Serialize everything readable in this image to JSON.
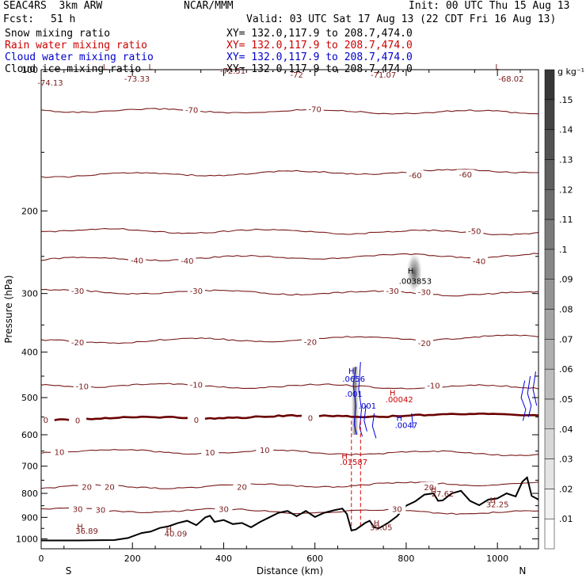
{
  "header": {
    "model": "SEAC4RS  3km ARW",
    "org": "NCAR/MMM",
    "init": "Init: 00 UTC Thu 15 Aug 13",
    "fcst_label": "Fcst:",
    "fcst_value": "51 h",
    "valid": "Valid: 03 UTC Sat 17 Aug 13 (22 CDT Fri 16 Aug 13)"
  },
  "fields": [
    {
      "name": "Snow mixing ratio",
      "xy": "XY= 132.0,117.9 to 208.7,474.0",
      "color": "#000000"
    },
    {
      "name": "Rain water mixing ratio",
      "xy": "XY= 132.0,117.9 to 208.7,474.0",
      "color": "#cc0000"
    },
    {
      "name": "Cloud water mixing ratio",
      "xy": "XY= 132.0,117.9 to 208.7,474.0",
      "color": "#0000cc"
    },
    {
      "name": "Cloud ice mixing ratio",
      "xy": "XY= 132.0,117.9 to 208.7,474.0",
      "color": "#000000"
    }
  ],
  "chart_data": {
    "type": "contour",
    "xlabel": "Distance (km)",
    "ylabel": "Pressure (hPa)",
    "xlim": [
      0,
      1090
    ],
    "ylim": [
      1050,
      100
    ],
    "y_scale": "log",
    "x_ticks": [
      "0",
      "200",
      "400",
      "600",
      "800",
      "1000"
    ],
    "y_ticks": [
      "100",
      "200",
      "300",
      "400",
      "500",
      "600",
      "700",
      "800",
      "900",
      "1000"
    ],
    "x_end_labels": {
      "left": "S",
      "right": "N"
    },
    "colorbar": {
      "unit": "g kg⁻¹",
      "levels": [
        ".01",
        ".02",
        ".03",
        ".04",
        ".05",
        ".06",
        ".07",
        ".08",
        ".09",
        ".1",
        ".11",
        ".12",
        ".13",
        ".14",
        ".15"
      ]
    },
    "colors": {
      "temperature": "#7a1a1a",
      "freezing": "#6b0000",
      "rain": "#dd0000",
      "cloud_water": "#0000dd",
      "terrain": "#000000"
    },
    "temperature_lines": [
      {
        "label": "-70",
        "p": 122,
        "labels_x": [
          330,
          600
        ]
      },
      {
        "label": "-60",
        "p": 168,
        "labels_x": [
          820,
          930
        ]
      },
      {
        "label": "-50",
        "p": 220,
        "labels_x": [
          950
        ]
      },
      {
        "label": "-40",
        "p": 254,
        "labels_x": [
          210,
          320,
          960
        ]
      },
      {
        "label": "-30",
        "p": 297,
        "labels_x": [
          80,
          340,
          770,
          840
        ]
      },
      {
        "label": "-20",
        "p": 380,
        "labels_x": [
          80,
          590,
          840
        ]
      },
      {
        "label": "-10",
        "p": 470,
        "labels_x": [
          90,
          340,
          860
        ]
      },
      {
        "label": "0",
        "p": 555,
        "labels_x": [
          10,
          80,
          340,
          590
        ],
        "freezing": true
      },
      {
        "label": "10",
        "p": 650,
        "labels_x": [
          40,
          370,
          490
        ]
      },
      {
        "label": "20",
        "p": 778,
        "labels_x": [
          100,
          150,
          440,
          850
        ]
      },
      {
        "label": "30",
        "p": 868,
        "labels_x": [
          80,
          130,
          400,
          780
        ]
      }
    ],
    "annotations": [
      {
        "label": "-74.13",
        "x": 20,
        "p": 108,
        "color": "#7a1a1a"
      },
      {
        "label": "L",
        "x": 140,
        "p": 100,
        "color": "#7a1a1a"
      },
      {
        "label": "L",
        "x": 240,
        "p": 100,
        "color": "#7a1a1a"
      },
      {
        "label": "-73.33",
        "x": 210,
        "p": 106,
        "color": "#7a1a1a"
      },
      {
        "label": "-72.51",
        "x": 420,
        "p": 102,
        "color": "#7a1a1a"
      },
      {
        "label": "-72",
        "x": 560,
        "p": 104,
        "color": "#7a1a1a"
      },
      {
        "label": "-71.07",
        "x": 750,
        "p": 104,
        "color": "#7a1a1a"
      },
      {
        "label": "L",
        "x": 1000,
        "p": 100,
        "color": "#7a1a1a"
      },
      {
        "label": "-68.02",
        "x": 1030,
        "p": 106,
        "color": "#7a1a1a"
      },
      {
        "label": "H",
        "x": 810,
        "p": 272,
        "color": "#000000"
      },
      {
        "label": ".003853",
        "x": 820,
        "p": 286,
        "color": "#000000"
      },
      {
        "label": "H",
        "x": 680,
        "p": 445,
        "color": "#0000cc"
      },
      {
        "label": ".0656",
        "x": 685,
        "p": 462,
        "color": "#0000cc"
      },
      {
        "label": ".001",
        "x": 685,
        "p": 498,
        "color": "#0000cc"
      },
      {
        "label": ".001",
        "x": 715,
        "p": 528,
        "color": "#0000cc"
      },
      {
        "label": "H",
        "x": 785,
        "p": 560,
        "color": "#0000cc"
      },
      {
        "label": ".0047",
        "x": 800,
        "p": 580,
        "color": "#0000cc"
      },
      {
        "label": "H",
        "x": 770,
        "p": 495,
        "color": "#cc0000"
      },
      {
        "label": ".00042",
        "x": 785,
        "p": 512,
        "color": "#cc0000"
      },
      {
        "label": "H",
        "x": 665,
        "p": 676,
        "color": "#cc0000"
      },
      {
        "label": ".01587",
        "x": 685,
        "p": 696,
        "color": "#cc0000"
      },
      {
        "label": "H",
        "x": 860,
        "p": 795,
        "color": "#7a1a1a"
      },
      {
        "label": "27.62",
        "x": 880,
        "p": 812,
        "color": "#7a1a1a"
      },
      {
        "label": "H",
        "x": 990,
        "p": 838,
        "color": "#7a1a1a"
      },
      {
        "label": "32.25",
        "x": 1000,
        "p": 856,
        "color": "#7a1a1a"
      },
      {
        "label": "H",
        "x": 85,
        "p": 955,
        "color": "#7a1a1a"
      },
      {
        "label": "36.89",
        "x": 100,
        "p": 976,
        "color": "#7a1a1a"
      },
      {
        "label": "H",
        "x": 280,
        "p": 968,
        "color": "#7a1a1a"
      },
      {
        "label": "40.09",
        "x": 295,
        "p": 988,
        "color": "#7a1a1a"
      },
      {
        "label": "H",
        "x": 735,
        "p": 938,
        "color": "#7a1a1a"
      },
      {
        "label": "39.05",
        "x": 745,
        "p": 958,
        "color": "#7a1a1a"
      }
    ],
    "terrain": {
      "x": [
        0,
        80,
        160,
        190,
        220,
        240,
        260,
        280,
        300,
        320,
        340,
        360,
        370,
        380,
        400,
        420,
        440,
        460,
        480,
        500,
        520,
        540,
        560,
        580,
        600,
        620,
        640,
        660,
        670,
        680,
        690,
        700,
        710,
        720,
        730,
        740,
        760,
        780,
        800,
        820,
        840,
        860,
        870,
        880,
        900,
        920,
        940,
        960,
        980,
        1000,
        1020,
        1040,
        1055,
        1065,
        1075,
        1090
      ],
      "p": [
        1008,
        1008,
        1006,
        996,
        972,
        965,
        948,
        940,
        925,
        915,
        935,
        900,
        893,
        920,
        912,
        930,
        925,
        945,
        920,
        900,
        880,
        872,
        895,
        872,
        898,
        880,
        870,
        862,
        885,
        960,
        955,
        940,
        925,
        915,
        945,
        950,
        925,
        895,
        850,
        832,
        805,
        800,
        830,
        828,
        800,
        790,
        830,
        848,
        825,
        820,
        800,
        812,
        755,
        740,
        810,
        825
      ]
    },
    "rain_column": {
      "x": [
        680,
        700
      ],
      "p_top": 560,
      "p_bottom": 950
    },
    "snow_shading": {
      "x": 818,
      "p_min": 245,
      "p_max": 300,
      "max_value": 0.003853
    },
    "cloud_water_column": {
      "x": 688,
      "p_min": 430,
      "p_max": 600
    }
  }
}
